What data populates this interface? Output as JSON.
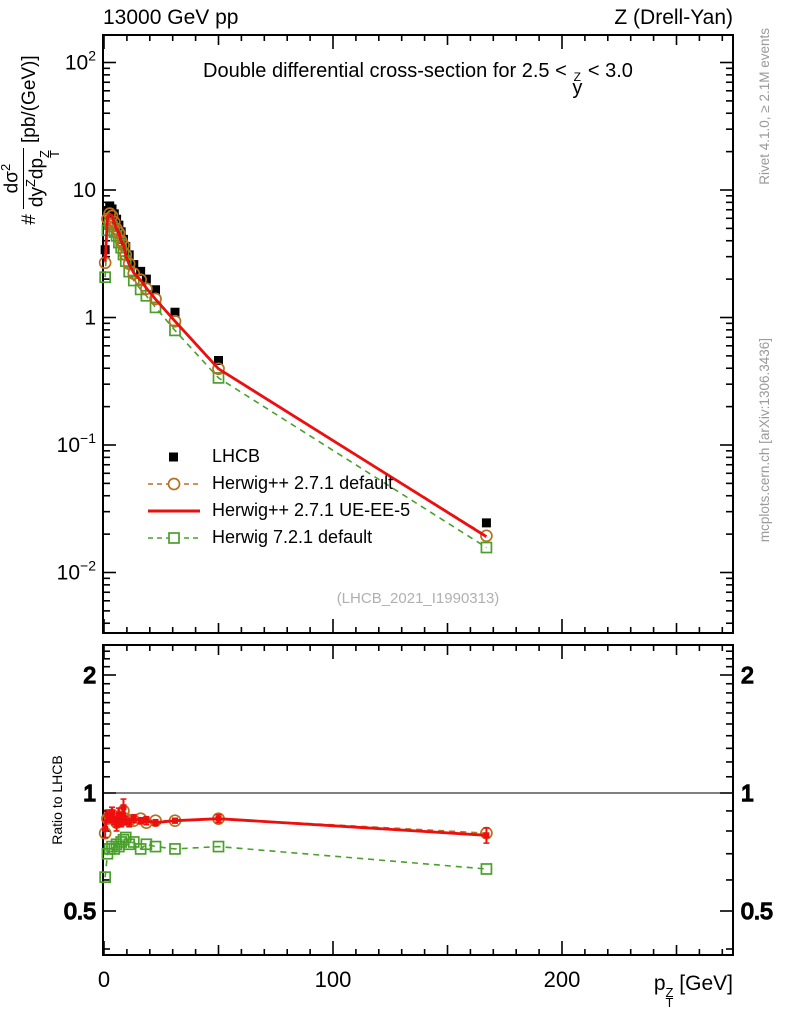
{
  "header": {
    "left": "13000 GeV pp",
    "right": "Z (Drell-Yan)"
  },
  "title": {
    "prefix": "Double differential cross-section for 2.5 < ",
    "y_sup": "Z",
    "y_base": "y",
    "suffix": " < 3.0"
  },
  "ylabel": {
    "prefix": "#",
    "num_base": "dσ",
    "num_sup": "2",
    "den1_base": "dy",
    "den1_sup": "Z",
    "den2_base": "dp",
    "den2_sub": "T",
    "den2_sup": "Z",
    "units": "[pb/(GeV)]"
  },
  "xlabel": {
    "base": "p",
    "sub": "T",
    "sup": "Z",
    "units": " [GeV]"
  },
  "ratio_ylabel": "Ratio to LHCB",
  "watermark": "(LHCB_2021_I1990313)",
  "side_text_top": "Rivet 4.1.0, ≥ 2.1M events",
  "side_text_bottom": "mcplots.cern.ch [arXiv:1306.3436]",
  "legend": [
    {
      "label": "LHCB",
      "marker": "square-filled",
      "line": "none",
      "color": "#000000"
    },
    {
      "label": "Herwig++ 2.7.1 default",
      "marker": "circle-open",
      "line": "dashed",
      "color": "#b8701f"
    },
    {
      "label": "Herwig++ 2.7.1 UE-EE-5",
      "marker": "none",
      "line": "solid",
      "color": "#ee0e0e"
    },
    {
      "label": "Herwig 7.2.1 default",
      "marker": "square-open",
      "line": "dashed",
      "color": "#4aa02c"
    }
  ],
  "chart_data": {
    "type": "line",
    "title": "Double differential cross-section for 2.5 < y^Z < 3.0",
    "xlabel": "p_T^Z [GeV]",
    "ylabel": "# dσ²/dy^Z dp_T^Z [pb/(GeV)]",
    "x_bin_centers": [
      0.5,
      1.5,
      2.5,
      3.5,
      4.5,
      5.5,
      6.5,
      7.5,
      8.5,
      9.5,
      11,
      13,
      16,
      18.5,
      22.5,
      31,
      50,
      167
    ],
    "xlim": [
      0,
      274
    ],
    "xticks": [
      {
        "v": 0,
        "label": "0"
      },
      {
        "v": 100,
        "label": "100"
      },
      {
        "v": 200,
        "label": "200"
      }
    ],
    "main_panel": {
      "ylog": true,
      "ylim": [
        0.0033,
        166
      ],
      "yticks": [
        {
          "v": 100,
          "base": "10",
          "exp": "2"
        },
        {
          "v": 10,
          "base": "10",
          "exp": ""
        },
        {
          "v": 1,
          "base": "1",
          "exp": ""
        },
        {
          "v": 0.1,
          "base": "10",
          "exp": "−1"
        },
        {
          "v": 0.01,
          "base": "10",
          "exp": "−2"
        }
      ],
      "series": [
        {
          "name": "LHCB",
          "values": [
            3.4,
            6.9,
            7.5,
            7.1,
            6.5,
            5.9,
            5.3,
            4.7,
            4.1,
            3.6,
            3.1,
            2.6,
            2.3,
            2.0,
            1.65,
            1.1,
            0.46,
            0.0245
          ]
        },
        {
          "name": "Herwig++ 2.7.1 default",
          "values": [
            2.69,
            5.93,
            6.53,
            6.25,
            5.59,
            4.96,
            4.61,
            4.0,
            3.69,
            3.1,
            2.64,
            2.21,
            1.98,
            1.68,
            1.4,
            0.935,
            0.396,
            0.0194
          ]
        },
        {
          "name": "Herwig++ 2.7.1 UE-EE-5",
          "values": [
            2.75,
            6.07,
            6.45,
            6.32,
            5.53,
            4.9,
            4.66,
            3.95,
            3.77,
            3.06,
            2.6,
            2.24,
            1.96,
            1.7,
            1.39,
            0.935,
            0.396,
            0.0191
          ]
        },
        {
          "name": "Herwig 7.2.1 default",
          "values": [
            2.07,
            4.83,
            5.4,
            5.18,
            4.68,
            4.37,
            3.87,
            3.53,
            3.12,
            2.77,
            2.29,
            1.95,
            1.66,
            1.48,
            1.2,
            0.792,
            0.336,
            0.0157
          ]
        }
      ]
    },
    "ratio_panel": {
      "ylog": true,
      "ylim": [
        0.386,
        2.39
      ],
      "baseline": 1,
      "ylabel": "Ratio to LHCB",
      "yticks": [
        {
          "v": 2,
          "label": "2"
        },
        {
          "v": 1,
          "label": "1"
        },
        {
          "v": 0.5,
          "label": "0.5"
        }
      ],
      "series": [
        {
          "name": "Herwig++ 2.7.1 default",
          "values": [
            0.79,
            0.86,
            0.87,
            0.88,
            0.86,
            0.84,
            0.87,
            0.85,
            0.9,
            0.86,
            0.85,
            0.85,
            0.86,
            0.84,
            0.85,
            0.85,
            0.86,
            0.79
          ]
        },
        {
          "name": "Herwig++ 2.7.1 UE-EE-5",
          "values": [
            0.81,
            0.88,
            0.86,
            0.89,
            0.85,
            0.83,
            0.88,
            0.84,
            0.92,
            0.85,
            0.84,
            0.86,
            0.85,
            0.85,
            0.84,
            0.85,
            0.86,
            0.78
          ],
          "errors": [
            0.04,
            0.025,
            0.02,
            0.03,
            0.02,
            0.03,
            0.035,
            0.02,
            0.045,
            0.02,
            0.02,
            0.02,
            0.015,
            0.02,
            0.015,
            0.012,
            0.02,
            0.035
          ]
        },
        {
          "name": "Herwig 7.2.1 default",
          "values": [
            0.61,
            0.7,
            0.72,
            0.73,
            0.72,
            0.74,
            0.73,
            0.75,
            0.76,
            0.77,
            0.74,
            0.75,
            0.72,
            0.74,
            0.73,
            0.72,
            0.73,
            0.64
          ]
        }
      ]
    }
  }
}
